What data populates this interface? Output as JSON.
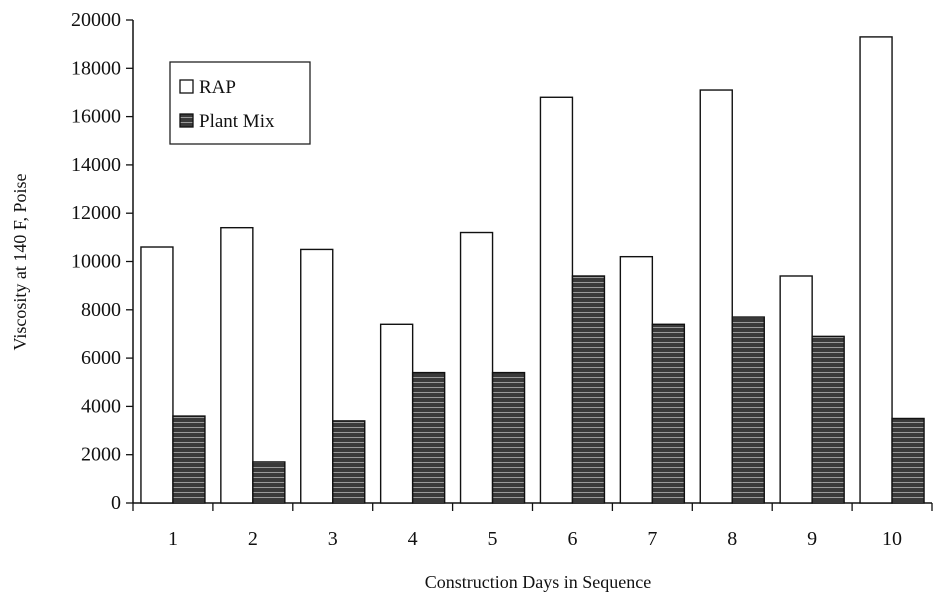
{
  "chart_data": {
    "type": "bar",
    "xlabel": "Construction Days in  Sequence",
    "ylabel": "Viscosity at 140 F, Poise",
    "categories": [
      "1",
      "2",
      "3",
      "4",
      "5",
      "6",
      "7",
      "8",
      "9",
      "10"
    ],
    "ylim": [
      0,
      20000
    ],
    "yticks": [
      "0",
      "2000",
      "4000",
      "6000",
      "8000",
      "10000",
      "12000",
      "14000",
      "16000",
      "18000",
      "20000"
    ],
    "series": [
      {
        "name": "RAP",
        "values": [
          10600,
          11400,
          10500,
          7400,
          11200,
          16800,
          10200,
          17100,
          9400,
          19300
        ],
        "color": "#ffffff"
      },
      {
        "name": "Plant Mix",
        "values": [
          3600,
          1700,
          3400,
          5400,
          5400,
          9400,
          7400,
          7700,
          6900,
          3500
        ],
        "color": "#3a3a3a"
      }
    ],
    "legend_position": "top-left",
    "grid": false
  }
}
